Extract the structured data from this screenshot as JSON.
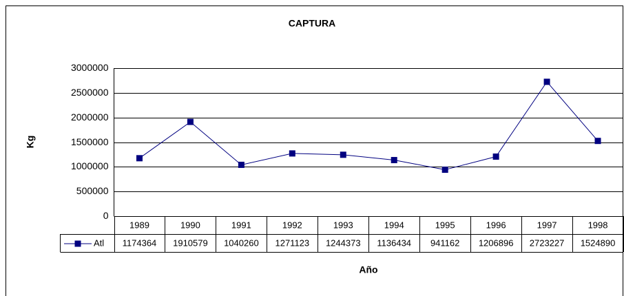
{
  "chart_data": {
    "type": "line",
    "title": "CAPTURA",
    "x_label": "Año",
    "y_label": "Kg",
    "categories": [
      "1989",
      "1990",
      "1991",
      "1992",
      "1993",
      "1994",
      "1995",
      "1996",
      "1997",
      "1998"
    ],
    "series": [
      {
        "name": "Atl",
        "color": "#000080",
        "values": [
          1174364,
          1910579,
          1040260,
          1271123,
          1244373,
          1136434,
          941162,
          1206896,
          2723227,
          1524890
        ]
      }
    ],
    "ylim": [
      0,
      3000000
    ],
    "yticks": [
      0,
      500000,
      1000000,
      1500000,
      2000000,
      2500000,
      3000000
    ],
    "grid": true,
    "data_table": true
  }
}
